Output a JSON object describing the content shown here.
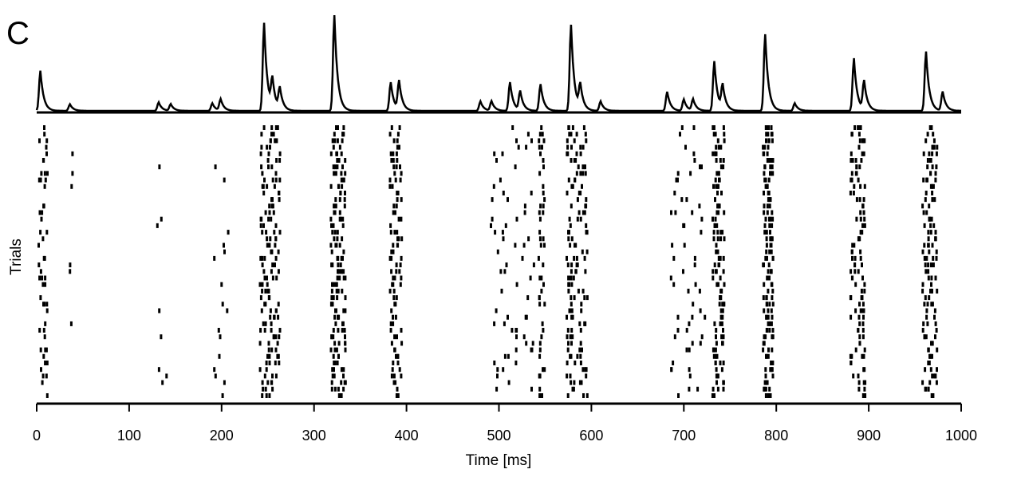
{
  "chart_data": {
    "type": "raster",
    "panel_label": "C",
    "xlabel": "Time [ms]",
    "ylabel": "Trials",
    "xlim": [
      0,
      1000
    ],
    "xticks": [
      0,
      100,
      200,
      300,
      400,
      500,
      600,
      700,
      800,
      900,
      1000
    ],
    "psth_peaks_ms": [
      {
        "t": 4,
        "height": 0.42
      },
      {
        "t": 36,
        "height": 0.07
      },
      {
        "t": 132,
        "height": 0.09
      },
      {
        "t": 145,
        "height": 0.07
      },
      {
        "t": 190,
        "height": 0.08
      },
      {
        "t": 199,
        "height": 0.12
      },
      {
        "t": 246,
        "height": 0.92
      },
      {
        "t": 255,
        "height": 0.3
      },
      {
        "t": 263,
        "height": 0.22
      },
      {
        "t": 322,
        "height": 1.0
      },
      {
        "t": 383,
        "height": 0.3
      },
      {
        "t": 392,
        "height": 0.3
      },
      {
        "t": 480,
        "height": 0.1
      },
      {
        "t": 492,
        "height": 0.1
      },
      {
        "t": 512,
        "height": 0.3
      },
      {
        "t": 523,
        "height": 0.2
      },
      {
        "t": 545,
        "height": 0.28
      },
      {
        "t": 578,
        "height": 0.9
      },
      {
        "t": 588,
        "height": 0.25
      },
      {
        "t": 610,
        "height": 0.1
      },
      {
        "t": 682,
        "height": 0.2
      },
      {
        "t": 700,
        "height": 0.12
      },
      {
        "t": 710,
        "height": 0.12
      },
      {
        "t": 733,
        "height": 0.52
      },
      {
        "t": 742,
        "height": 0.25
      },
      {
        "t": 788,
        "height": 0.8
      },
      {
        "t": 820,
        "height": 0.08
      },
      {
        "t": 884,
        "height": 0.55
      },
      {
        "t": 895,
        "height": 0.3
      },
      {
        "t": 962,
        "height": 0.62
      },
      {
        "t": 980,
        "height": 0.2
      }
    ],
    "raster_bursts_ms": [
      {
        "t": 5,
        "width": 6,
        "density": 0.55
      },
      {
        "t": 37,
        "width": 3,
        "density": 0.08
      },
      {
        "t": 132,
        "width": 8,
        "density": 0.18
      },
      {
        "t": 196,
        "width": 10,
        "density": 0.25
      },
      {
        "t": 248,
        "width": 14,
        "density": 0.95
      },
      {
        "t": 323,
        "width": 10,
        "density": 0.95
      },
      {
        "t": 386,
        "width": 8,
        "density": 0.7
      },
      {
        "t": 505,
        "width": 30,
        "density": 0.55
      },
      {
        "t": 545,
        "width": 4,
        "density": 0.5
      },
      {
        "t": 580,
        "width": 14,
        "density": 0.95
      },
      {
        "t": 695,
        "width": 25,
        "density": 0.5
      },
      {
        "t": 735,
        "width": 8,
        "density": 0.85
      },
      {
        "t": 789,
        "width": 7,
        "density": 0.95
      },
      {
        "t": 885,
        "width": 10,
        "density": 0.85
      },
      {
        "t": 963,
        "width": 10,
        "density": 0.85
      }
    ],
    "trials": 42,
    "grid": false
  }
}
